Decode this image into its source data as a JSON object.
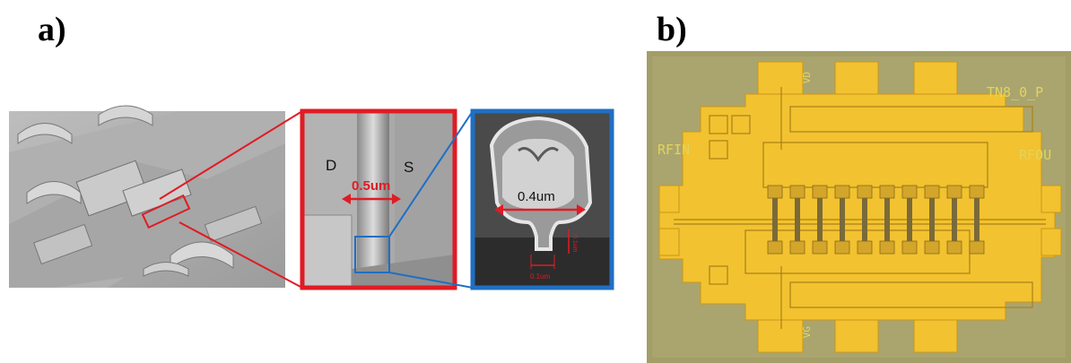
{
  "panels": {
    "a": {
      "label": "a)",
      "zoom_sem": {
        "drain_label": "D",
        "source_label": "S",
        "gate_length": "0.5um"
      },
      "cross_section": {
        "gate_head_width": "0.4um",
        "foot_width": "0.1um",
        "height_label": "0.1um"
      }
    },
    "b": {
      "label": "b)",
      "chip": {
        "name": "TN8_0_P",
        "rf_in": "RFIN",
        "rf_out": "RFOU",
        "pad_top": "VD",
        "pad_bottom": "VG"
      }
    }
  },
  "colors": {
    "zoom_border": "#e01b24",
    "cross_border": "#1f6fc4",
    "chip_gold": "#f2c230",
    "chip_substrate": "#a39e68"
  }
}
